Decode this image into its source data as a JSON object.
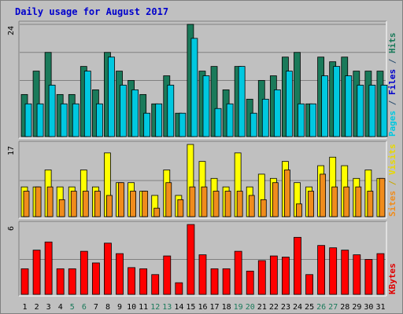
{
  "chart_data": [
    {
      "type": "bar",
      "title": "Daily usage for August 2017",
      "panel": "hits-files-pages",
      "right_legend": [
        {
          "text": "Pages",
          "color": "#00c8e0"
        },
        {
          "text": " / ",
          "color": "#2a4d6e"
        },
        {
          "text": "Files",
          "color": "#0000cc"
        },
        {
          "text": " / ",
          "color": "#2a4d6e"
        },
        {
          "text": "Hits",
          "color": "#1a7a5a"
        }
      ],
      "ymax_label": "24",
      "ylim": [
        0,
        24
      ],
      "series": [
        {
          "name": "Hits",
          "color": "#1a7a5a",
          "values": [
            9,
            14,
            18,
            9,
            9,
            15,
            10,
            18,
            14,
            12,
            9,
            7,
            13,
            5,
            24,
            14,
            15,
            10,
            15,
            8,
            12,
            13,
            17,
            18,
            7,
            17,
            16,
            17,
            14,
            14,
            14
          ]
        },
        {
          "name": "Files",
          "color": "#0000cc",
          "values": [
            7,
            7,
            11,
            7,
            7,
            14,
            7,
            17,
            11,
            10,
            5,
            7,
            11,
            5,
            21,
            13,
            6,
            7,
            15,
            5,
            8,
            10,
            14,
            7,
            7,
            13,
            15,
            13,
            11,
            11,
            11
          ]
        },
        {
          "name": "Pages",
          "color": "#00c8e0",
          "values": [
            7,
            7,
            11,
            7,
            7,
            14,
            7,
            17,
            11,
            10,
            5,
            7,
            11,
            5,
            21,
            13,
            6,
            7,
            15,
            5,
            8,
            10,
            14,
            7,
            7,
            13,
            15,
            13,
            11,
            11,
            11
          ]
        }
      ]
    },
    {
      "type": "bar",
      "panel": "visits-sites",
      "right_legend": [
        {
          "text": "Sites",
          "color": "#f08c1c"
        },
        {
          "text": " / ",
          "color": "#c8a800"
        },
        {
          "text": "Visits",
          "color": "#e8d800"
        }
      ],
      "ymax_label": "17",
      "ylim": [
        0,
        17
      ],
      "series": [
        {
          "name": "Visits",
          "color": "#ffff00",
          "values": [
            7,
            7,
            11,
            7,
            7,
            11,
            7,
            15,
            8,
            8,
            6,
            5,
            11,
            5,
            17,
            13,
            9,
            7,
            15,
            7,
            10,
            9,
            13,
            8,
            7,
            12,
            14,
            12,
            9,
            11,
            9
          ]
        },
        {
          "name": "Sites",
          "color": "#f08c1c",
          "values": [
            6,
            7,
            7,
            4,
            6,
            6,
            6,
            5,
            8,
            6,
            6,
            2,
            8,
            4,
            7,
            7,
            6,
            6,
            6,
            5,
            4,
            8,
            11,
            3,
            6,
            10,
            7,
            7,
            7,
            6,
            9
          ]
        }
      ]
    },
    {
      "type": "bar",
      "panel": "kbytes",
      "right_legend": [
        {
          "text": "KBytes",
          "color": "#e00000"
        }
      ],
      "ymax_label": "6",
      "ylim": [
        0,
        6
      ],
      "series": [
        {
          "name": "KBytes",
          "color": "#ff0000",
          "values": [
            2.2,
            3.8,
            4.5,
            2.2,
            2.2,
            3.7,
            2.7,
            4.4,
            3.5,
            2.3,
            2.2,
            1.7,
            3.3,
            1.0,
            6.0,
            3.4,
            2.2,
            2.2,
            3.7,
            2.0,
            2.9,
            3.3,
            3.2,
            4.9,
            1.7,
            4.2,
            4.0,
            3.8,
            3.4,
            3.0,
            3.5
          ]
        }
      ]
    }
  ],
  "x_axis": {
    "categories": [
      "1",
      "2",
      "3",
      "4",
      "5",
      "6",
      "7",
      "8",
      "9",
      "10",
      "11",
      "12",
      "13",
      "14",
      "15",
      "16",
      "17",
      "18",
      "19",
      "20",
      "21",
      "22",
      "23",
      "24",
      "25",
      "26",
      "27",
      "28",
      "29",
      "30",
      "31"
    ],
    "weekend_days": [
      5,
      6,
      12,
      13,
      19,
      20,
      26,
      27
    ],
    "weekday_color": "#000000",
    "weekend_color": "#1a7a5a"
  },
  "colors": {
    "background": "#c0c0c0",
    "plot_area": "#c0c0c0",
    "title": "#0000cc",
    "gridline": "#808080",
    "bar_outline": "#000000"
  }
}
